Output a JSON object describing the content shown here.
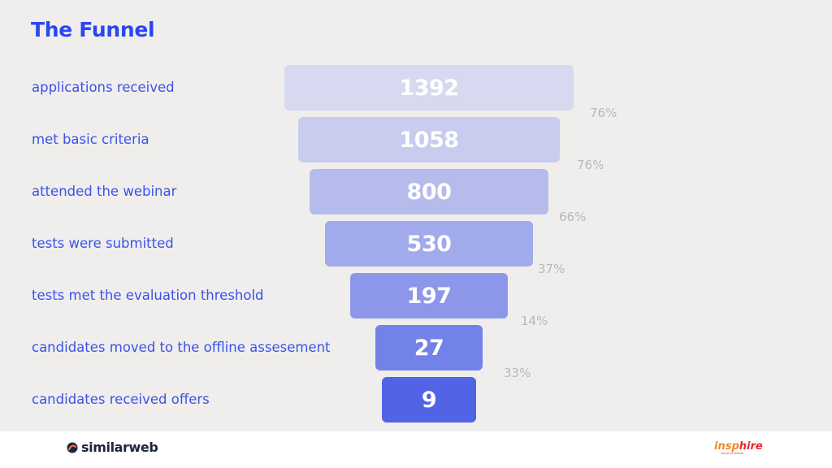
{
  "title": "The Funnel",
  "chart_data": {
    "type": "bar",
    "categories": [
      "applications received",
      "met basic criteria",
      "attended the webinar",
      "tests were submitted",
      "tests met the evaluation threshold",
      "candidates moved to the offline assesement",
      "candidates received offers"
    ],
    "values": [
      1392,
      1058,
      800,
      530,
      197,
      27,
      9
    ],
    "value_labels": [
      "1392",
      "1058",
      "800",
      "530",
      "197",
      "27",
      "9"
    ],
    "conversion_rates": [
      "76%",
      "76%",
      "66%",
      "37%",
      "14%",
      "33%"
    ],
    "bar_colors": [
      "#d7d9f0",
      "#c8ccee",
      "#b5bcec",
      "#a1aaeb",
      "#8c97ea",
      "#7382e8",
      "#5263e6"
    ]
  },
  "footer": {
    "left_brand": "similarweb",
    "right_brand_part1": "insp",
    "right_brand_part2": "hire",
    "right_brand_sub": "house of talents"
  },
  "colors": {
    "accent": "#2a46f0",
    "label": "#3b52e8",
    "rate": "#b8b8b8",
    "background": "#efeeed"
  }
}
